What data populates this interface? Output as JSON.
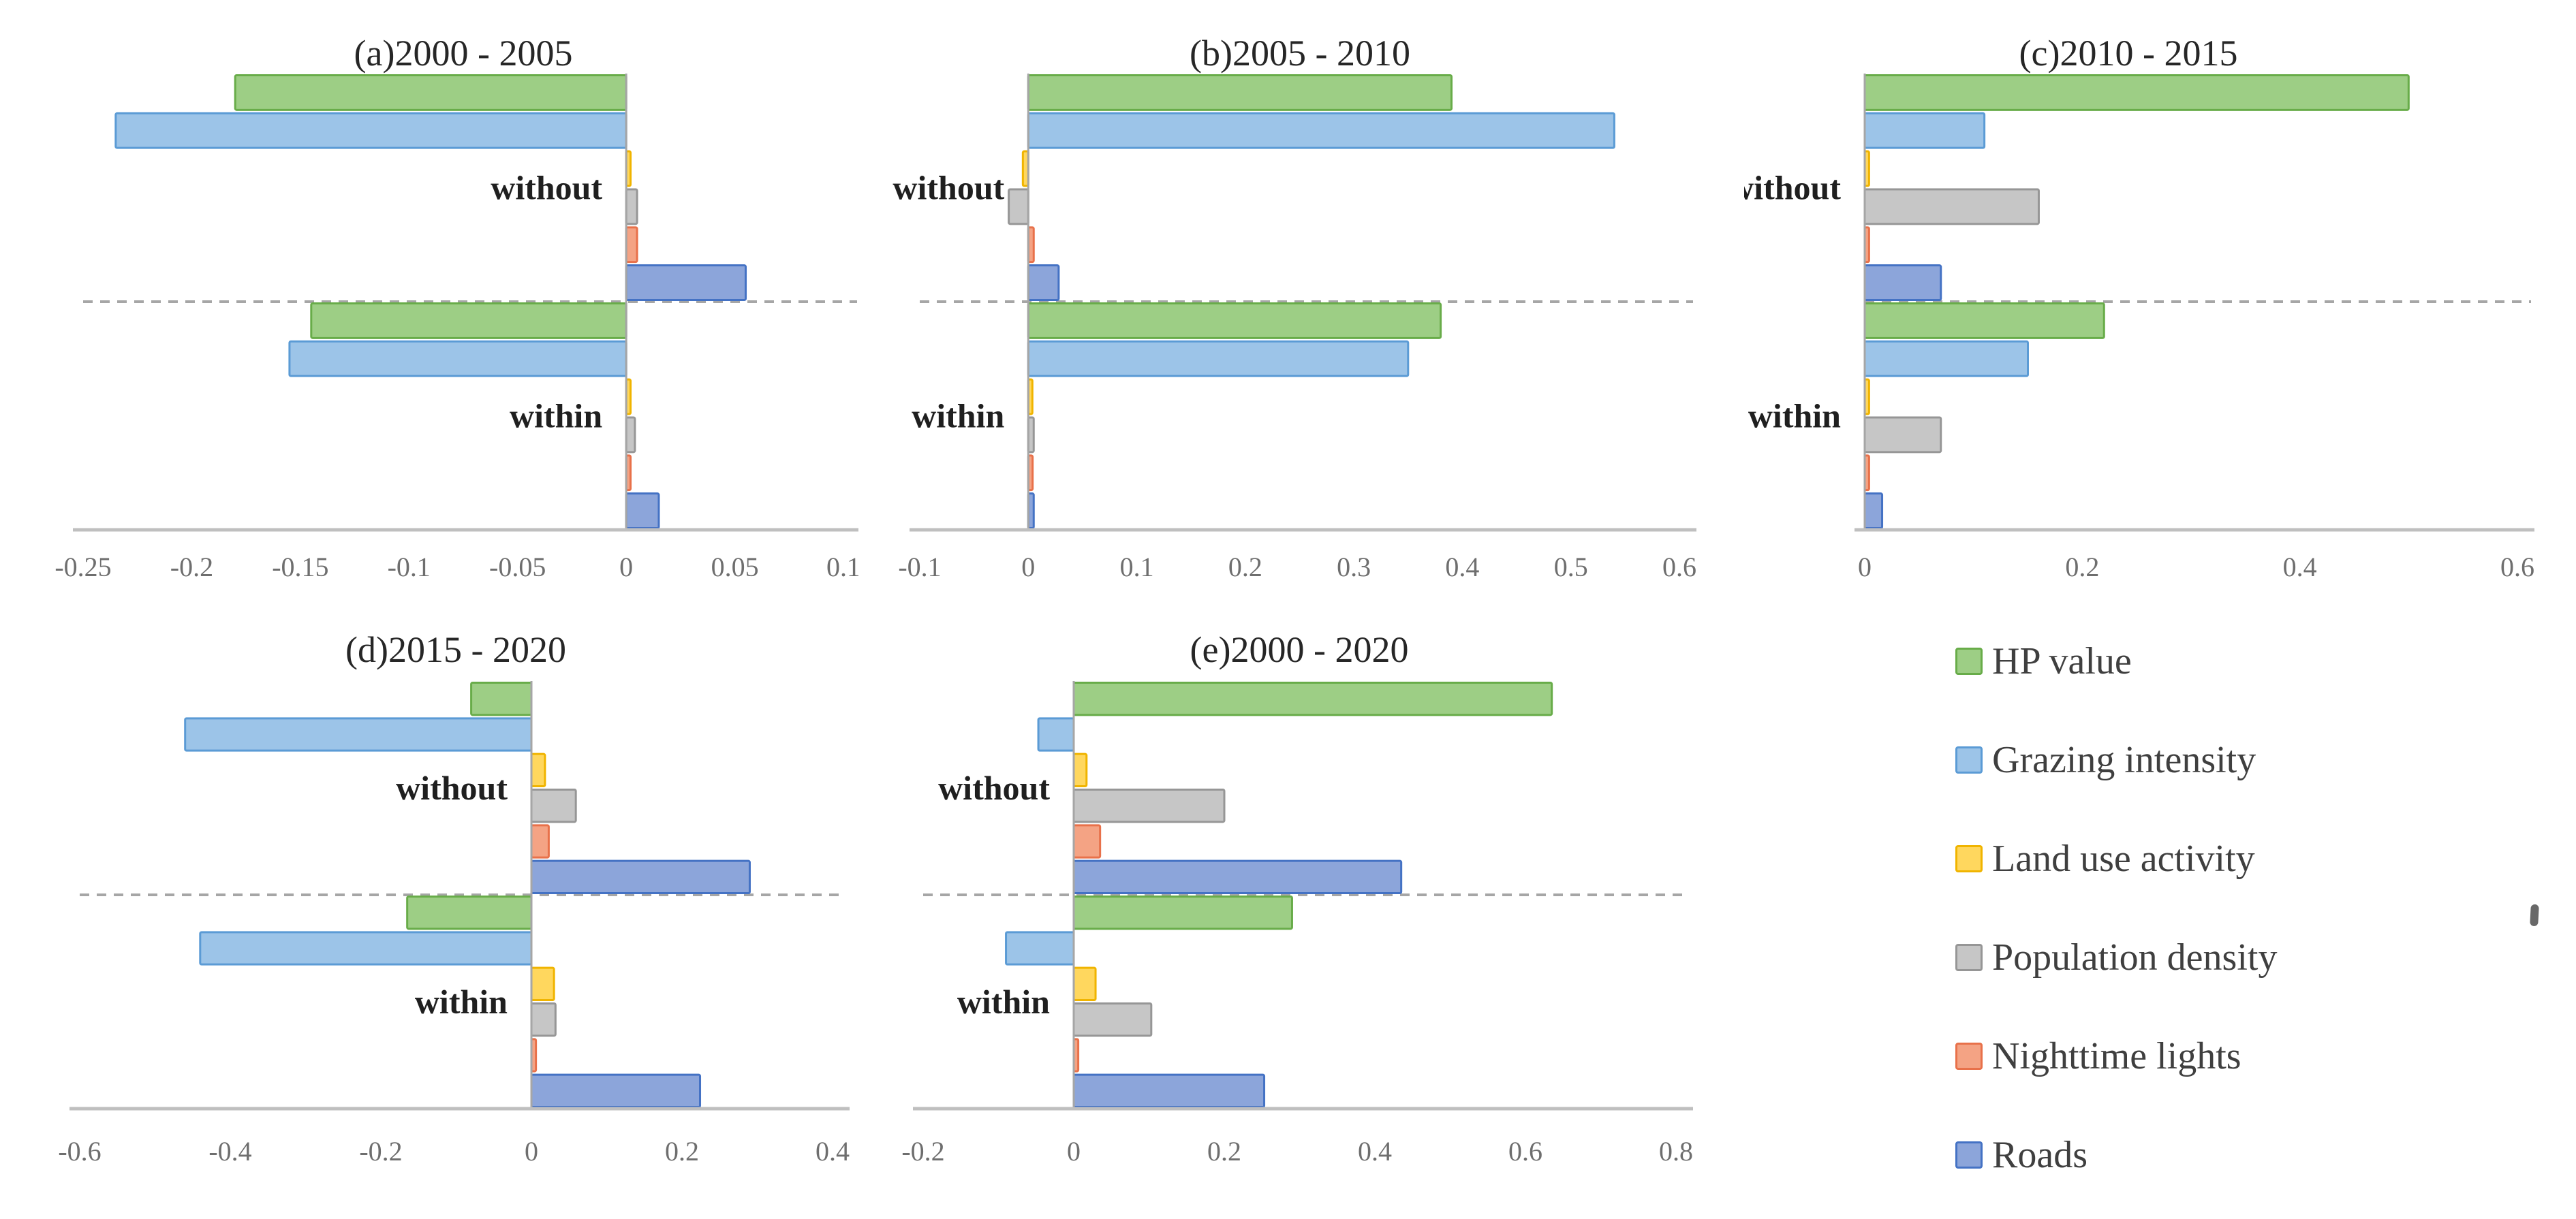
{
  "figure": {
    "background": "#ffffff",
    "axis_line_color": "#bfbfbf",
    "zero_line_color": "#a6a6a6",
    "separator_line_color": "#a6a6a6"
  },
  "legend": {
    "position": "bottom-right",
    "items": [
      {
        "label": "HP value",
        "fill": "#9dce85",
        "border": "#68ac49"
      },
      {
        "label": "Grazing intensity",
        "fill": "#9cc4e8",
        "border": "#5b9bd5"
      },
      {
        "label": "Land use activity",
        "fill": "#ffd75e",
        "border": "#f0b400"
      },
      {
        "label": "Population density",
        "fill": "#c6c6c6",
        "border": "#969696"
      },
      {
        "label": "Nighttime lights",
        "fill": "#f4a384",
        "border": "#e8714a"
      },
      {
        "label": "Roads",
        "fill": "#8ca5da",
        "border": "#4472c4"
      }
    ]
  },
  "chart_data": [
    {
      "id": "a",
      "type": "bar",
      "orientation": "horizontal",
      "grid": false,
      "title": "(a)2000 - 2005",
      "categories": [
        "without",
        "within"
      ],
      "series": [
        {
          "name": "HP value",
          "values": [
            -0.18,
            -0.145
          ]
        },
        {
          "name": "Grazing intensity",
          "values": [
            -0.235,
            -0.155
          ]
        },
        {
          "name": "Land use activity",
          "values": [
            0.002,
            0.002
          ]
        },
        {
          "name": "Population density",
          "values": [
            0.005,
            0.004
          ]
        },
        {
          "name": "Nighttime lights",
          "values": [
            0.005,
            0.002
          ]
        },
        {
          "name": "Roads",
          "values": [
            0.055,
            0.015
          ]
        }
      ],
      "xlim": [
        -0.25,
        0.1
      ],
      "ticks": [
        -0.25,
        -0.2,
        -0.15,
        -0.1,
        -0.05,
        0,
        0.05,
        0.1
      ],
      "tick_labels": [
        "-0.25",
        "-0.2",
        "-0.15",
        "-0.1",
        "-0.05",
        "0",
        "0.05",
        "0.1"
      ]
    },
    {
      "id": "b",
      "type": "bar",
      "orientation": "horizontal",
      "grid": false,
      "title": "(b)2005 - 2010",
      "categories": [
        "without",
        "within"
      ],
      "series": [
        {
          "name": "HP value",
          "values": [
            0.39,
            0.38
          ]
        },
        {
          "name": "Grazing intensity",
          "values": [
            0.54,
            0.35
          ]
        },
        {
          "name": "Land use activity",
          "values": [
            -0.005,
            0.002
          ]
        },
        {
          "name": "Population density",
          "values": [
            -0.018,
            0.005
          ]
        },
        {
          "name": "Nighttime lights",
          "values": [
            0.005,
            0.004
          ]
        },
        {
          "name": "Roads",
          "values": [
            0.028,
            0.005
          ]
        }
      ],
      "xlim": [
        -0.1,
        0.6
      ],
      "ticks": [
        -0.1,
        0,
        0.1,
        0.2,
        0.3,
        0.4,
        0.5,
        0.6
      ],
      "tick_labels": [
        "-0.1",
        "0",
        "0.1",
        "0.2",
        "0.3",
        "0.4",
        "0.5",
        "0.6"
      ]
    },
    {
      "id": "c",
      "type": "bar",
      "orientation": "horizontal",
      "grid": false,
      "title": "(c)2010 - 2015",
      "categories": [
        "without",
        "within"
      ],
      "series": [
        {
          "name": "HP value",
          "values": [
            0.5,
            0.22
          ]
        },
        {
          "name": "Grazing intensity",
          "values": [
            0.11,
            0.15
          ]
        },
        {
          "name": "Land use activity",
          "values": [
            0.004,
            0.004
          ]
        },
        {
          "name": "Population density",
          "values": [
            0.16,
            0.07
          ]
        },
        {
          "name": "Nighttime lights",
          "values": [
            0.004,
            0.004
          ]
        },
        {
          "name": "Roads",
          "values": [
            0.07,
            0.016
          ]
        }
      ],
      "xlim": [
        0,
        0.6
      ],
      "ticks": [
        0,
        0.2,
        0.4,
        0.6
      ],
      "tick_labels": [
        "0",
        "0.2",
        "0.4",
        "0.6"
      ]
    },
    {
      "id": "d",
      "type": "bar",
      "orientation": "horizontal",
      "grid": false,
      "title": "(d)2015 - 2020",
      "categories": [
        "without",
        "within"
      ],
      "series": [
        {
          "name": "HP value",
          "values": [
            -0.08,
            -0.165
          ]
        },
        {
          "name": "Grazing intensity",
          "values": [
            -0.46,
            -0.44
          ]
        },
        {
          "name": "Land use activity",
          "values": [
            0.018,
            0.03
          ]
        },
        {
          "name": "Population density",
          "values": [
            0.059,
            0.032
          ]
        },
        {
          "name": "Nighttime lights",
          "values": [
            0.023,
            0.006
          ]
        },
        {
          "name": "Roads",
          "values": [
            0.29,
            0.224
          ]
        }
      ],
      "xlim": [
        -0.6,
        0.4
      ],
      "ticks": [
        -0.6,
        -0.4,
        -0.2,
        0,
        0.2,
        0.4
      ],
      "tick_labels": [
        "-0.6",
        "-0.4",
        "-0.2",
        "0",
        "0.2",
        "0.4"
      ]
    },
    {
      "id": "e",
      "type": "bar",
      "orientation": "horizontal",
      "grid": false,
      "title": "(e)2000 - 2020",
      "categories": [
        "without",
        "within"
      ],
      "series": [
        {
          "name": "HP value",
          "values": [
            0.635,
            0.29
          ]
        },
        {
          "name": "Grazing intensity",
          "values": [
            -0.047,
            -0.09
          ]
        },
        {
          "name": "Land use activity",
          "values": [
            0.017,
            0.029
          ]
        },
        {
          "name": "Population density",
          "values": [
            0.2,
            0.103
          ]
        },
        {
          "name": "Nighttime lights",
          "values": [
            0.035,
            0.006
          ]
        },
        {
          "name": "Roads",
          "values": [
            0.435,
            0.253
          ]
        }
      ],
      "xlim": [
        -0.2,
        0.8
      ],
      "ticks": [
        -0.2,
        0,
        0.2,
        0.4,
        0.6,
        0.8
      ],
      "tick_labels": [
        "-0.2",
        "0",
        "0.2",
        "0.4",
        "0.6",
        "0.8"
      ]
    }
  ]
}
